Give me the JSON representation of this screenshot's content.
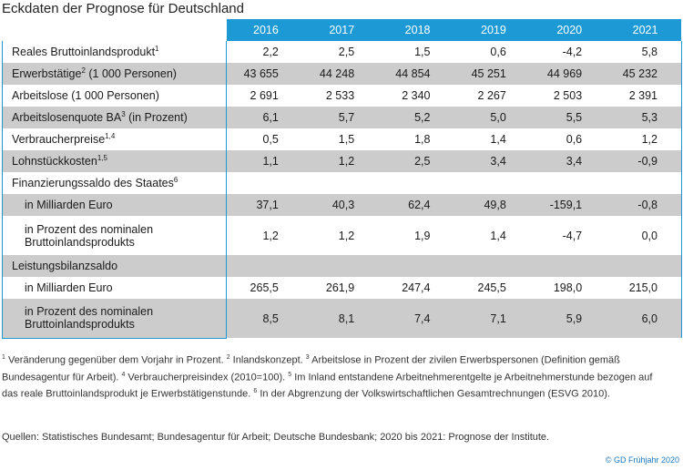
{
  "title": "Eckdaten der Prognose für Deutschland",
  "years": [
    "2016",
    "2017",
    "2018",
    "2019",
    "2020",
    "2021"
  ],
  "rows": [
    {
      "label": "Reales Bruttoinlandsprodukt",
      "sup": "1",
      "values": [
        "2,2",
        "2,5",
        "1,5",
        "0,6",
        "-4,2",
        "5,8"
      ]
    },
    {
      "label": "Erwerbstätige",
      "sup": "2",
      "label_suffix": " (1 000 Personen)",
      "values": [
        "43 655",
        "44 248",
        "44 854",
        "45 251",
        "44 969",
        "45 232"
      ]
    },
    {
      "label": "Arbeitslose (1 000 Personen)",
      "values": [
        "2 691",
        "2 533",
        "2 340",
        "2 267",
        "2 503",
        "2 391"
      ]
    },
    {
      "label": "Arbeitslosenquote BA",
      "sup": "3",
      "label_suffix": " (in Prozent)",
      "values": [
        "6,1",
        "5,7",
        "5,2",
        "5,0",
        "5,5",
        "5,3"
      ]
    },
    {
      "label": "Verbraucherpreise",
      "sup": "1,4",
      "values": [
        "0,5",
        "1,5",
        "1,8",
        "1,4",
        "0,6",
        "1,2"
      ]
    },
    {
      "label": "Lohnstückkosten",
      "sup": "1,5",
      "values": [
        "1,1",
        "1,2",
        "2,5",
        "3,4",
        "3,4",
        "-0,9"
      ]
    },
    {
      "label": "Finanzierungssaldo des Staates",
      "sup": "6",
      "values": [
        "",
        "",
        "",
        "",
        "",
        ""
      ]
    },
    {
      "label": "in Milliarden Euro",
      "indent": true,
      "values": [
        "37,1",
        "40,3",
        "62,4",
        "49,8",
        "-159,1",
        "-0,8"
      ]
    },
    {
      "label": "in Prozent des nominalen Bruttoinlandsprodukts",
      "indent": true,
      "tall": true,
      "values": [
        "1,2",
        "1,2",
        "1,9",
        "1,4",
        "-4,7",
        "0,0"
      ]
    },
    {
      "label": "Leistungsbilanzsaldo",
      "values": [
        "",
        "",
        "",
        "",
        "",
        ""
      ]
    },
    {
      "label": "in Milliarden Euro",
      "indent": true,
      "values": [
        "265,5",
        "261,9",
        "247,4",
        "245,5",
        "198,0",
        "215,0"
      ]
    },
    {
      "label": "in Prozent des nominalen Bruttoinlandsprodukts",
      "indent": true,
      "tall": true,
      "values": [
        "8,5",
        "8,1",
        "7,4",
        "7,1",
        "5,9",
        "6,0"
      ]
    }
  ],
  "footnotes": [
    {
      "sup": "1",
      "text": " Veränderung gegenüber dem Vorjahr in Prozent. "
    },
    {
      "sup": "2",
      "text": " Inlandskonzept. "
    },
    {
      "sup": "3",
      "text": " Arbeitslose in Prozent der zivilen Erwerbspersonen (Definition gemäß Bundesagentur für Arbeit). "
    },
    {
      "sup": "4",
      "text": " Verbraucherpreisindex (2010=100). "
    },
    {
      "sup": "5",
      "text": " Im Inland entstandene Arbeitnehmerentgelte je Arbeitnehmerstunde bezogen auf das reale Bruttoinlandsprodukt je Erwerbstätigenstunde. "
    },
    {
      "sup": "6",
      "text": " In der Abgrenzung der Volkswirtschaftlichen Gesamtrechnungen (ESVG 2010)."
    }
  ],
  "sources": "Quellen: Statistisches Bundesamt; Bundesagentur für Arbeit; Deutsche Bundesbank; 2020 bis 2021: Prognose der Institute.",
  "copyright": "© GD Frühjahr 2020",
  "colors": {
    "header_bg": "#1d9ad6",
    "shade_row": "#cccccc",
    "copyright": "#1d78c1"
  }
}
